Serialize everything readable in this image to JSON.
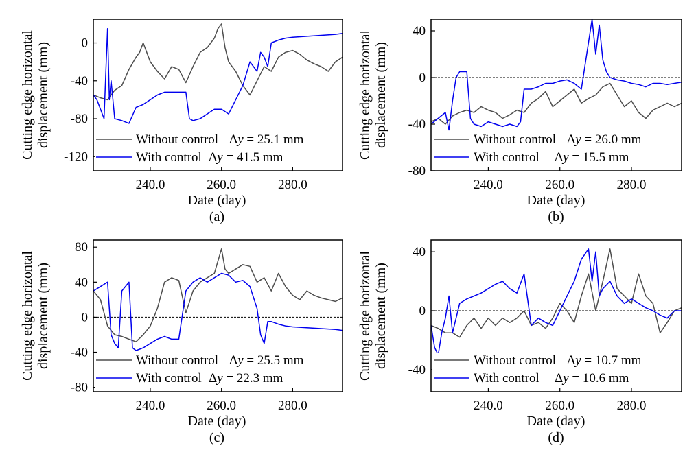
{
  "colors": {
    "without": "#4d4d4d",
    "with": "#0000ee",
    "zero_line": "#000000"
  },
  "chart_data": [
    {
      "type": "line",
      "panel_label": "(a)",
      "xlabel": "Date (day)",
      "ylabel_line1": "Cutting edge horizontal",
      "ylabel_line2": "displacement (mm)",
      "xlim": [
        224,
        294
      ],
      "ylim": [
        -135,
        25
      ],
      "xticks": [
        240,
        260,
        280
      ],
      "xtick_labels": [
        "240.0",
        "260.0",
        "280.0"
      ],
      "yticks": [
        -120,
        -80,
        -40,
        0
      ],
      "ytick_labels": [
        "-120",
        "-80",
        "-40",
        "0"
      ],
      "legend_position": "bottom-left",
      "series": [
        {
          "name": "Without control",
          "delta_label": "Δy = 25.1 mm",
          "x": [
            224,
            226,
            228,
            230,
            232,
            234,
            236,
            237,
            238,
            240,
            242,
            244,
            246,
            248,
            250,
            252,
            254,
            256,
            258,
            259,
            260,
            261,
            262,
            264,
            266,
            268,
            270,
            272,
            274,
            276,
            278,
            280,
            282,
            284,
            286,
            288,
            290,
            292,
            294
          ],
          "y": [
            -55,
            -58,
            -60,
            -50,
            -45,
            -28,
            -15,
            -10,
            0,
            -20,
            -30,
            -38,
            -25,
            -28,
            -42,
            -25,
            -10,
            -5,
            5,
            15,
            20,
            -5,
            -20,
            -30,
            -45,
            -55,
            -40,
            -25,
            -30,
            -15,
            -10,
            -8,
            -12,
            -18,
            -22,
            -25,
            -30,
            -20,
            -15
          ]
        },
        {
          "name": "With control",
          "delta_label": "Δy = 41.5 mm",
          "x": [
            224,
            225,
            226,
            227,
            227.5,
            228,
            228.5,
            229,
            230,
            232,
            234,
            236,
            238,
            240,
            242,
            244,
            246,
            248,
            250,
            251,
            252,
            254,
            256,
            258,
            260,
            262,
            264,
            266,
            268,
            270,
            271,
            272,
            273,
            274,
            276,
            278,
            280,
            284,
            288,
            292,
            294
          ],
          "y": [
            -55,
            -60,
            -70,
            -80,
            -30,
            15,
            -60,
            -40,
            -80,
            -82,
            -85,
            -68,
            -65,
            -60,
            -55,
            -52,
            -52,
            -52,
            -52,
            -80,
            -82,
            -80,
            -75,
            -70,
            -70,
            -75,
            -60,
            -45,
            -20,
            -30,
            -10,
            -15,
            -25,
            0,
            3,
            5,
            6,
            7,
            8,
            9,
            10
          ]
        }
      ]
    },
    {
      "type": "line",
      "panel_label": "(b)",
      "xlabel": "Date (day)",
      "ylabel_line1": "Cutting edge horizontal",
      "ylabel_line2": "displacement (mm)",
      "xlim": [
        224,
        294
      ],
      "ylim": [
        -80,
        50
      ],
      "xticks": [
        240,
        260,
        280
      ],
      "xtick_labels": [
        "240.0",
        "260.0",
        "280.0"
      ],
      "yticks": [
        -80,
        -40,
        0,
        40
      ],
      "ytick_labels": [
        "-80",
        "-40",
        "0",
        "40"
      ],
      "legend_position": "bottom-left",
      "series": [
        {
          "name": "Without control",
          "delta_label": "Δy = 26.0 mm",
          "x": [
            224,
            226,
            228,
            230,
            232,
            234,
            236,
            238,
            240,
            242,
            244,
            246,
            248,
            250,
            252,
            254,
            256,
            258,
            260,
            262,
            264,
            266,
            268,
            270,
            272,
            274,
            276,
            278,
            280,
            282,
            284,
            286,
            288,
            290,
            292,
            294
          ],
          "y": [
            -38,
            -35,
            -40,
            -33,
            -30,
            -28,
            -30,
            -25,
            -28,
            -30,
            -35,
            -32,
            -28,
            -30,
            -22,
            -18,
            -12,
            -25,
            -20,
            -15,
            -10,
            -22,
            -18,
            -15,
            -8,
            -5,
            -15,
            -25,
            -20,
            -30,
            -35,
            -28,
            -25,
            -22,
            -25,
            -22
          ]
        },
        {
          "name": "With control",
          "delta_label": "Δy = 15.5 mm",
          "x": [
            224,
            226,
            228,
            229,
            230,
            231,
            232,
            234,
            235,
            236,
            238,
            240,
            242,
            244,
            246,
            248,
            249,
            250,
            252,
            254,
            256,
            258,
            260,
            262,
            264,
            266,
            267,
            268,
            269,
            270,
            271,
            272,
            273,
            274,
            276,
            278,
            280,
            282,
            284,
            286,
            288,
            290,
            292,
            294
          ],
          "y": [
            -40,
            -35,
            -30,
            -45,
            -20,
            0,
            5,
            5,
            -35,
            -40,
            -42,
            -38,
            -40,
            -42,
            -40,
            -42,
            -38,
            -10,
            -10,
            -8,
            -5,
            -5,
            -3,
            -2,
            -5,
            -10,
            10,
            30,
            50,
            20,
            45,
            15,
            5,
            0,
            -2,
            -3,
            -5,
            -6,
            -8,
            -5,
            -5,
            -6,
            -5,
            -4
          ]
        }
      ]
    },
    {
      "type": "line",
      "panel_label": "(c)",
      "xlabel": "Date (day)",
      "ylabel_line1": "Cutting edge horizontal",
      "ylabel_line2": "displacement (mm)",
      "xlim": [
        224,
        294
      ],
      "ylim": [
        -85,
        88
      ],
      "xticks": [
        240,
        260,
        280
      ],
      "xtick_labels": [
        "240.0",
        "260.0",
        "280.0"
      ],
      "yticks": [
        -80,
        -40,
        0,
        40,
        80
      ],
      "ytick_labels": [
        "-80",
        "-40",
        "0",
        "40",
        "80"
      ],
      "legend_position": "bottom-left",
      "series": [
        {
          "name": "Without control",
          "delta_label": "Δy = 25.5 mm",
          "x": [
            224,
            226,
            228,
            230,
            232,
            234,
            236,
            238,
            240,
            242,
            244,
            246,
            248,
            250,
            252,
            254,
            256,
            258,
            260,
            261,
            262,
            264,
            266,
            268,
            270,
            272,
            274,
            276,
            278,
            280,
            282,
            284,
            286,
            288,
            290,
            292,
            294
          ],
          "y": [
            30,
            20,
            -10,
            -20,
            -22,
            -25,
            -28,
            -20,
            -10,
            10,
            40,
            45,
            42,
            5,
            30,
            40,
            45,
            50,
            78,
            55,
            50,
            55,
            60,
            58,
            40,
            45,
            30,
            50,
            35,
            25,
            20,
            30,
            25,
            22,
            20,
            18,
            22
          ]
        },
        {
          "name": "With control",
          "delta_label": "Δy = 22.3 mm",
          "x": [
            224,
            226,
            228,
            229,
            230,
            231,
            232,
            234,
            235,
            236,
            238,
            240,
            242,
            244,
            246,
            248,
            250,
            252,
            254,
            256,
            258,
            260,
            262,
            264,
            266,
            268,
            270,
            271,
            272,
            273,
            274,
            276,
            278,
            280,
            284,
            288,
            292,
            294
          ],
          "y": [
            30,
            35,
            40,
            -20,
            -30,
            -35,
            30,
            40,
            -35,
            -38,
            -35,
            -30,
            -25,
            -22,
            -25,
            -25,
            30,
            40,
            45,
            40,
            45,
            50,
            48,
            40,
            42,
            35,
            10,
            -20,
            -30,
            -5,
            -5,
            -8,
            -10,
            -11,
            -12,
            -13,
            -14,
            -15
          ]
        }
      ]
    },
    {
      "type": "line",
      "panel_label": "(d)",
      "xlabel": "Date (day)",
      "ylabel_line1": "Cutting edge horizontal",
      "ylabel_line2": "displacement (mm)",
      "xlim": [
        224,
        294
      ],
      "ylim": [
        -55,
        48
      ],
      "xticks": [
        240,
        260,
        280
      ],
      "xtick_labels": [
        "240.0",
        "260.0",
        "280.0"
      ],
      "yticks": [
        -40,
        0,
        40
      ],
      "ytick_labels": [
        "-40",
        "0",
        "40"
      ],
      "legend_position": "bottom-left",
      "series": [
        {
          "name": "Without control",
          "delta_label": "Δy = 10.7 mm",
          "x": [
            224,
            226,
            228,
            230,
            232,
            234,
            236,
            238,
            240,
            242,
            244,
            246,
            248,
            250,
            252,
            254,
            256,
            258,
            260,
            262,
            264,
            266,
            268,
            270,
            272,
            274,
            276,
            278,
            280,
            282,
            284,
            286,
            288,
            290,
            292,
            294
          ],
          "y": [
            -10,
            -12,
            -15,
            -15,
            -18,
            -10,
            -5,
            -12,
            -5,
            -10,
            -5,
            -8,
            -5,
            0,
            -10,
            -8,
            -12,
            -5,
            5,
            0,
            -8,
            10,
            25,
            0,
            20,
            42,
            15,
            10,
            5,
            25,
            10,
            5,
            -15,
            -8,
            0,
            2
          ]
        },
        {
          "name": "With control",
          "delta_label": "Δy = 10.6 mm",
          "x": [
            224,
            225,
            226,
            227,
            228,
            229,
            230,
            232,
            234,
            236,
            238,
            240,
            242,
            244,
            246,
            248,
            250,
            252,
            254,
            256,
            258,
            260,
            262,
            264,
            266,
            268,
            269,
            270,
            271,
            272,
            274,
            276,
            278,
            280,
            282,
            284,
            286,
            288,
            290,
            292,
            294
          ],
          "y": [
            -10,
            -25,
            -30,
            -15,
            -5,
            10,
            -15,
            5,
            8,
            10,
            12,
            15,
            18,
            20,
            15,
            12,
            25,
            -10,
            -5,
            -8,
            -10,
            0,
            10,
            20,
            35,
            42,
            20,
            40,
            10,
            15,
            20,
            10,
            5,
            8,
            5,
            2,
            0,
            -3,
            -5,
            0,
            0
          ]
        }
      ]
    }
  ]
}
